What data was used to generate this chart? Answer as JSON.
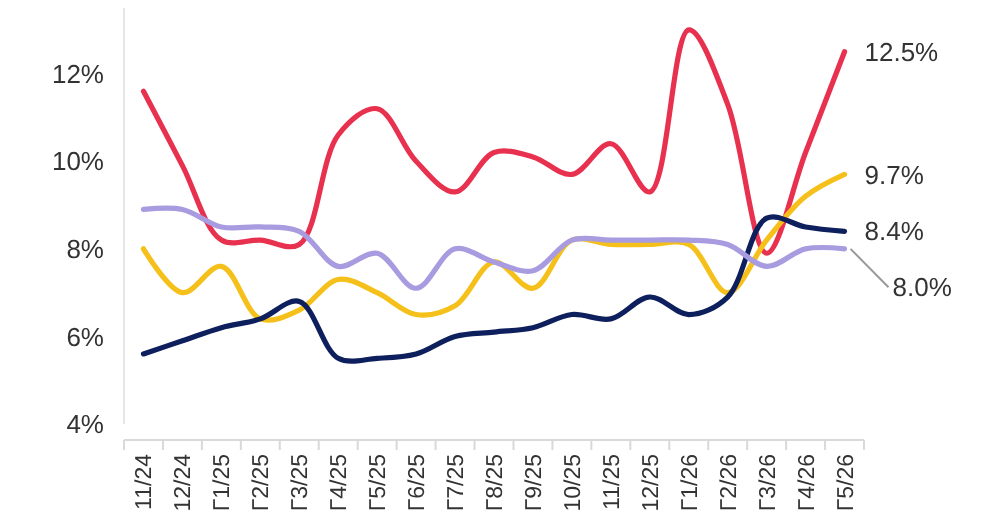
{
  "chart_data": {
    "type": "line",
    "categories": [
      "11/24",
      "12/24",
      "Г1/25",
      "Г2/25",
      "Г3/25",
      "Г4/25",
      "Г5/25",
      "Г6/25",
      "Г7/25",
      "Г8/25",
      "Г9/25",
      "10/25",
      "11/25",
      "12/25",
      "Г1/26",
      "Г2/26",
      "Г3/26",
      "Г4/26",
      "Г5/26"
    ],
    "series": [
      {
        "color": "#e8304f",
        "values": [
          11.6,
          9.9,
          8.2,
          8.2,
          8.1,
          10.6,
          11.2,
          10.0,
          9.3,
          10.2,
          10.1,
          9.7,
          10.4,
          9.3,
          13.0,
          11.3,
          7.9,
          10.2,
          12.5
        ],
        "value_labels": [
          null,
          null,
          null,
          null,
          null,
          null,
          null,
          null,
          null,
          null,
          null,
          null,
          null,
          null,
          null,
          null,
          null,
          null,
          "12.5%"
        ]
      },
      {
        "color": "#f5c01a",
        "values": [
          8.0,
          7.0,
          7.6,
          6.4,
          6.6,
          7.3,
          7.0,
          6.5,
          6.7,
          7.7,
          7.1,
          8.2,
          8.1,
          8.1,
          8.1,
          7.0,
          8.2,
          9.2,
          9.7
        ],
        "value_labels": [
          null,
          null,
          null,
          null,
          null,
          null,
          null,
          null,
          null,
          null,
          null,
          null,
          null,
          null,
          null,
          null,
          null,
          null,
          "9.7%"
        ]
      },
      {
        "color": "#0d1f5c",
        "values": [
          5.6,
          5.9,
          6.2,
          6.4,
          6.8,
          5.5,
          5.5,
          5.6,
          6.0,
          6.1,
          6.2,
          6.5,
          6.4,
          6.9,
          6.5,
          6.9,
          8.7,
          8.5,
          8.4
        ],
        "value_labels": [
          null,
          null,
          null,
          null,
          null,
          null,
          null,
          null,
          null,
          null,
          null,
          null,
          null,
          null,
          null,
          null,
          null,
          null,
          "8.4%"
        ]
      },
      {
        "color": "#a89be0",
        "values": [
          8.9,
          8.9,
          8.5,
          8.5,
          8.4,
          7.6,
          7.9,
          7.1,
          8.0,
          7.7,
          7.5,
          8.2,
          8.2,
          8.2,
          8.2,
          8.1,
          7.6,
          8.0,
          8.0
        ],
        "value_labels": [
          null,
          null,
          null,
          null,
          null,
          null,
          null,
          null,
          null,
          null,
          null,
          null,
          null,
          null,
          null,
          null,
          null,
          null,
          "8.0%"
        ]
      }
    ],
    "ylim": [
      4,
      13.5
    ],
    "yticks": [
      {
        "value": 4,
        "label": "4%"
      },
      {
        "value": 6,
        "label": "6%"
      },
      {
        "value": 8,
        "label": "8%"
      },
      {
        "value": 10,
        "label": "10%"
      },
      {
        "value": 12,
        "label": "12%"
      }
    ],
    "grid": false,
    "marker": "none",
    "line_style": "solid"
  }
}
